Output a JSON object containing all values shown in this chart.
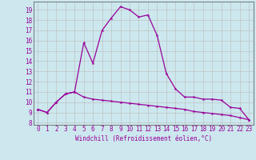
{
  "xlabel": "Windchill (Refroidissement éolien,°C)",
  "background_color": "#cce8ee",
  "grid_color": "#bbbbbb",
  "line_color": "#990099",
  "x_ticks": [
    0,
    1,
    2,
    3,
    4,
    5,
    6,
    7,
    8,
    9,
    10,
    11,
    12,
    13,
    14,
    15,
    16,
    17,
    18,
    19,
    20,
    21,
    22,
    23
  ],
  "y_ticks": [
    8,
    9,
    10,
    11,
    12,
    13,
    14,
    15,
    16,
    17,
    18,
    19
  ],
  "xlim": [
    -0.5,
    23.5
  ],
  "ylim": [
    7.8,
    19.8
  ],
  "series1_x": [
    0,
    1,
    2,
    3,
    4,
    5,
    6,
    7,
    8,
    9,
    10,
    11,
    12,
    13,
    14,
    15,
    16,
    17,
    18,
    19,
    20,
    21,
    22,
    23
  ],
  "series1_y": [
    9.3,
    9.0,
    10.0,
    10.8,
    11.0,
    15.8,
    13.8,
    17.0,
    18.2,
    19.3,
    19.0,
    18.3,
    18.5,
    16.5,
    12.8,
    11.3,
    10.5,
    10.5,
    10.3,
    10.3,
    10.2,
    9.5,
    9.4,
    8.3
  ],
  "series2_x": [
    0,
    1,
    2,
    3,
    4,
    5,
    6,
    7,
    8,
    9,
    10,
    11,
    12,
    13,
    14,
    15,
    16,
    17,
    18,
    19,
    20,
    21,
    22,
    23
  ],
  "series2_y": [
    9.3,
    9.0,
    10.0,
    10.8,
    11.0,
    10.5,
    10.3,
    10.2,
    10.1,
    10.0,
    9.9,
    9.8,
    9.7,
    9.6,
    9.5,
    9.4,
    9.3,
    9.1,
    9.0,
    8.9,
    8.8,
    8.7,
    8.5,
    8.3
  ],
  "marker_size": 3,
  "line_width": 0.9,
  "xlabel_fontsize": 5.5,
  "tick_fontsize": 5.5,
  "ylabel_fontsize": 5.5
}
